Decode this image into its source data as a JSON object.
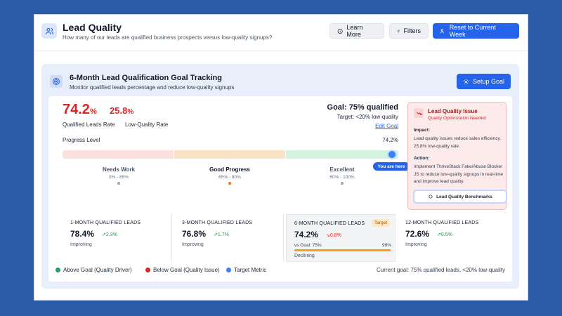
{
  "header": {
    "icon": "users-icon",
    "title": "Lead Quality",
    "subtitle": "How many of our leads are qualified business prospects versus low-quality signups?",
    "buttons": {
      "learn_more": "Learn More",
      "filters": "Filters",
      "reset": "Reset to Current Week"
    }
  },
  "panel": {
    "icon": "target-icon",
    "title": "6-Month Lead Qualification Goal Tracking",
    "subtitle": "Monitor qualified leads percentage and reduce low-quality signups",
    "setup_goal": "Setup Goal"
  },
  "metrics": {
    "qualified_value": "74.2",
    "qualified_unit": "%",
    "qualified_label": "Qualified Leads Rate",
    "lowq_value": "25.8",
    "lowq_unit": "%",
    "lowq_label": "Low-Quality Rate"
  },
  "goal": {
    "title": "Goal: 75% qualified",
    "target": "Target: <20% low-quality",
    "edit": "Edit Goal"
  },
  "progress": {
    "label": "Progress Level",
    "value_text": "74.2%",
    "fraction": 0.742,
    "you_are_here": "You are here",
    "zones": [
      {
        "name": "Needs Work",
        "range": "0% - 65%",
        "color": "#fde0de"
      },
      {
        "name": "Good Progress",
        "range": "65% - 80%",
        "color": "#fde3c5"
      },
      {
        "name": "Excellent",
        "range": "80% - 100%",
        "color": "#d3f5df"
      }
    ]
  },
  "issue": {
    "title": "Lead Quality Issue",
    "subtitle": "Quality Optimization Needed",
    "impact_label": "Impact:",
    "impact_text": "Lead quality issues reduce sales efficiency. 25.8% low-quality rate.",
    "action_label": "Action:",
    "action_text": "Implement ThriveStack Fake/Abuse Blocker JS to reduce low-quality signups in real-time and improve lead quality.",
    "button": "Lead Quality Benchmarks"
  },
  "cards": [
    {
      "title": "1-MONTH QUALIFIED LEADS",
      "value": "78.4%",
      "delta": "2.3%",
      "direction": "up",
      "status": "Improving"
    },
    {
      "title": "3-MONTH QUALIFIED LEADS",
      "value": "76.8%",
      "delta": "1.7%",
      "direction": "up",
      "status": "Improving"
    },
    {
      "title": "6-MONTH QUALIFIED LEADS",
      "value": "74.2%",
      "delta": "0.8%",
      "direction": "down",
      "status": "Declining",
      "badge": "Target",
      "vs_label": "vs Goal: 75%",
      "vs_value": "99%",
      "vs_fraction": 0.99
    },
    {
      "title": "12-MONTH QUALIFIED LEADS",
      "value": "72.6%",
      "delta": "0.5%",
      "direction": "up",
      "status": "Improving"
    }
  ],
  "legend": {
    "items": [
      {
        "label": "Above Goal (Quality Driver)",
        "color": "#22a06b"
      },
      {
        "label": "Below Goal (Quality Issue)",
        "color": "#dc2626"
      },
      {
        "label": "Target Metric",
        "color": "#3b82f6"
      }
    ],
    "summary": "Current goal: 75% qualified leads, <20% low-quality"
  },
  "colors": {
    "accent": "#2563eb",
    "danger": "#dc2626",
    "success": "#16a34a",
    "warning": "#f59e0b"
  }
}
